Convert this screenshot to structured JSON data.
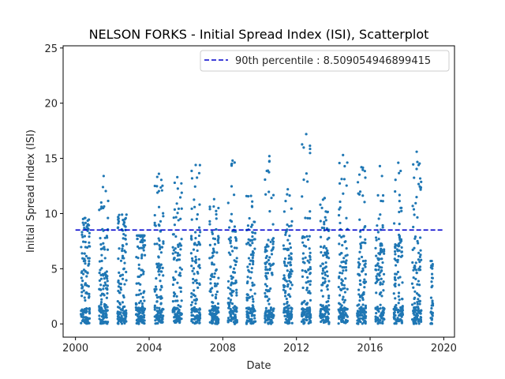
{
  "chart_data": {
    "type": "scatter",
    "title": "NELSON FORKS - Initial Spread Index (ISI), Scatterplot",
    "xlabel": "Date",
    "ylabel": "Initial Spread Index (ISI)",
    "xlim": [
      "1999-05-01",
      "2020-08-01"
    ],
    "ylim": [
      -1.2,
      25.2
    ],
    "x_ticks": [
      "2000",
      "2004",
      "2008",
      "2012",
      "2016",
      "2020"
    ],
    "y_ticks": [
      "0",
      "5",
      "10",
      "15",
      "20",
      "25"
    ],
    "grid": false,
    "legend_position": "top-right",
    "colors": {
      "points": "#1f77b4",
      "percentile_line": "#0000cc"
    },
    "series": [
      {
        "name": "ISI",
        "seasons": [
          {
            "year": 2000,
            "start": "2000-04-15",
            "end": "2000-10-10",
            "max": 9.6
          },
          {
            "year": 2001,
            "start": "2001-04-15",
            "end": "2001-10-10",
            "max": 13.4
          },
          {
            "year": 2002,
            "start": "2002-04-15",
            "end": "2002-10-10",
            "max": 9.9
          },
          {
            "year": 2003,
            "start": "2003-04-15",
            "end": "2003-10-10",
            "max": 8.0
          },
          {
            "year": 2004,
            "start": "2004-04-15",
            "end": "2004-10-10",
            "max": 13.6
          },
          {
            "year": 2005,
            "start": "2005-04-15",
            "end": "2005-10-10",
            "max": 13.3
          },
          {
            "year": 2006,
            "start": "2006-04-15",
            "end": "2006-10-10",
            "max": 14.4
          },
          {
            "year": 2007,
            "start": "2007-04-15",
            "end": "2007-10-10",
            "max": 11.3
          },
          {
            "year": 2008,
            "start": "2008-04-15",
            "end": "2008-10-10",
            "max": 14.8
          },
          {
            "year": 2009,
            "start": "2009-04-15",
            "end": "2009-10-10",
            "max": 11.6
          },
          {
            "year": 2010,
            "start": "2010-04-15",
            "end": "2010-10-10",
            "max": 15.2
          },
          {
            "year": 2011,
            "start": "2011-04-15",
            "end": "2011-10-10",
            "max": 12.2
          },
          {
            "year": 2012,
            "start": "2012-04-15",
            "end": "2012-10-10",
            "max": 17.2
          },
          {
            "year": 2013,
            "start": "2013-04-15",
            "end": "2013-10-10",
            "max": 11.4
          },
          {
            "year": 2014,
            "start": "2014-04-15",
            "end": "2014-10-10",
            "max": 15.3
          },
          {
            "year": 2015,
            "start": "2015-04-15",
            "end": "2015-10-10",
            "max": 14.2
          },
          {
            "year": 2016,
            "start": "2016-04-15",
            "end": "2016-10-10",
            "max": 14.3
          },
          {
            "year": 2017,
            "start": "2017-04-15",
            "end": "2017-10-10",
            "max": 14.6
          },
          {
            "year": 2018,
            "start": "2018-04-15",
            "end": "2018-10-10",
            "max": 15.6
          },
          {
            "year": 2019,
            "start": "2019-04-15",
            "end": "2019-05-31",
            "max": 5.7
          }
        ]
      }
    ],
    "percentile_line": {
      "label": "90th percentile : 8.509054946899415",
      "value": 8.509054946899415,
      "x_start": "2000-01-01",
      "x_end": "2019-12-31"
    }
  }
}
